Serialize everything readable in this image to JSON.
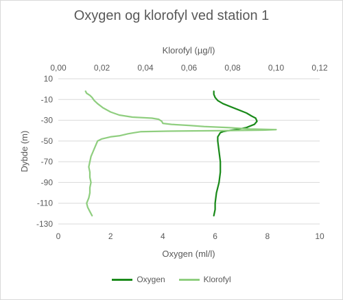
{
  "chart_data": {
    "type": "line",
    "title": "Oxygen og klorofyl ved station 1",
    "ylabel": "Dybde (m)",
    "ylim": [
      -130,
      10
    ],
    "y_ticks": [
      10,
      -10,
      -30,
      -50,
      -70,
      -90,
      -110,
      -130
    ],
    "x_bottom": {
      "label": "Oxygen (ml/l)",
      "range": [
        0,
        10
      ],
      "ticks": [
        0,
        2,
        4,
        6,
        8,
        10
      ]
    },
    "x_top": {
      "label": "Klorofyl (µg/l)",
      "range": [
        0,
        0.12
      ],
      "ticks": [
        "0,00",
        "0,02",
        "0,04",
        "0,06",
        "0,08",
        "0,10",
        "0,12"
      ]
    },
    "grid": "horizontal",
    "legend_position": "bottom",
    "series": [
      {
        "name": "Oxygen",
        "axis": "bottom",
        "color": "#1a8a1a",
        "points": [
          [
            5.95,
            -2
          ],
          [
            5.95,
            -5
          ],
          [
            6.0,
            -8
          ],
          [
            6.1,
            -11
          ],
          [
            6.3,
            -14
          ],
          [
            6.6,
            -17
          ],
          [
            6.9,
            -20
          ],
          [
            7.2,
            -23
          ],
          [
            7.4,
            -26
          ],
          [
            7.55,
            -28
          ],
          [
            7.6,
            -31
          ],
          [
            7.5,
            -34
          ],
          [
            7.2,
            -37
          ],
          [
            6.8,
            -39
          ],
          [
            6.5,
            -40
          ],
          [
            6.3,
            -41
          ],
          [
            6.2,
            -42
          ],
          [
            6.15,
            -44
          ],
          [
            6.1,
            -46
          ],
          [
            6.1,
            -50
          ],
          [
            6.15,
            -60
          ],
          [
            6.2,
            -70
          ],
          [
            6.2,
            -80
          ],
          [
            6.15,
            -90
          ],
          [
            6.05,
            -100
          ],
          [
            6.0,
            -110
          ],
          [
            6.0,
            -116
          ],
          [
            5.95,
            -122
          ]
        ]
      },
      {
        "name": "Klorofyl",
        "axis": "top",
        "color": "#8fce7f",
        "points": [
          [
            0.0125,
            -2
          ],
          [
            0.013,
            -4
          ],
          [
            0.0145,
            -6
          ],
          [
            0.0155,
            -8
          ],
          [
            0.0165,
            -11
          ],
          [
            0.018,
            -14
          ],
          [
            0.0205,
            -18
          ],
          [
            0.024,
            -22
          ],
          [
            0.028,
            -25
          ],
          [
            0.034,
            -27
          ],
          [
            0.043,
            -28
          ],
          [
            0.046,
            -29
          ],
          [
            0.0475,
            -31
          ],
          [
            0.048,
            -33
          ],
          [
            0.052,
            -34
          ],
          [
            0.06,
            -35
          ],
          [
            0.067,
            -36
          ],
          [
            0.078,
            -37
          ],
          [
            0.085,
            -38
          ],
          [
            0.088,
            -38.5
          ],
          [
            0.1,
            -39
          ],
          [
            0.094,
            -39.5
          ],
          [
            0.075,
            -40
          ],
          [
            0.05,
            -40.5
          ],
          [
            0.038,
            -41
          ],
          [
            0.035,
            -42
          ],
          [
            0.032,
            -43
          ],
          [
            0.03,
            -44
          ],
          [
            0.028,
            -45
          ],
          [
            0.024,
            -46
          ],
          [
            0.02,
            -48
          ],
          [
            0.018,
            -50
          ],
          [
            0.017,
            -55
          ],
          [
            0.016,
            -60
          ],
          [
            0.015,
            -65
          ],
          [
            0.0145,
            -70
          ],
          [
            0.014,
            -75
          ],
          [
            0.0145,
            -80
          ],
          [
            0.0145,
            -85
          ],
          [
            0.015,
            -90
          ],
          [
            0.0145,
            -95
          ],
          [
            0.0145,
            -100
          ],
          [
            0.014,
            -105
          ],
          [
            0.013,
            -110
          ],
          [
            0.0135,
            -114
          ],
          [
            0.0145,
            -118
          ],
          [
            0.0155,
            -122
          ]
        ]
      }
    ]
  }
}
